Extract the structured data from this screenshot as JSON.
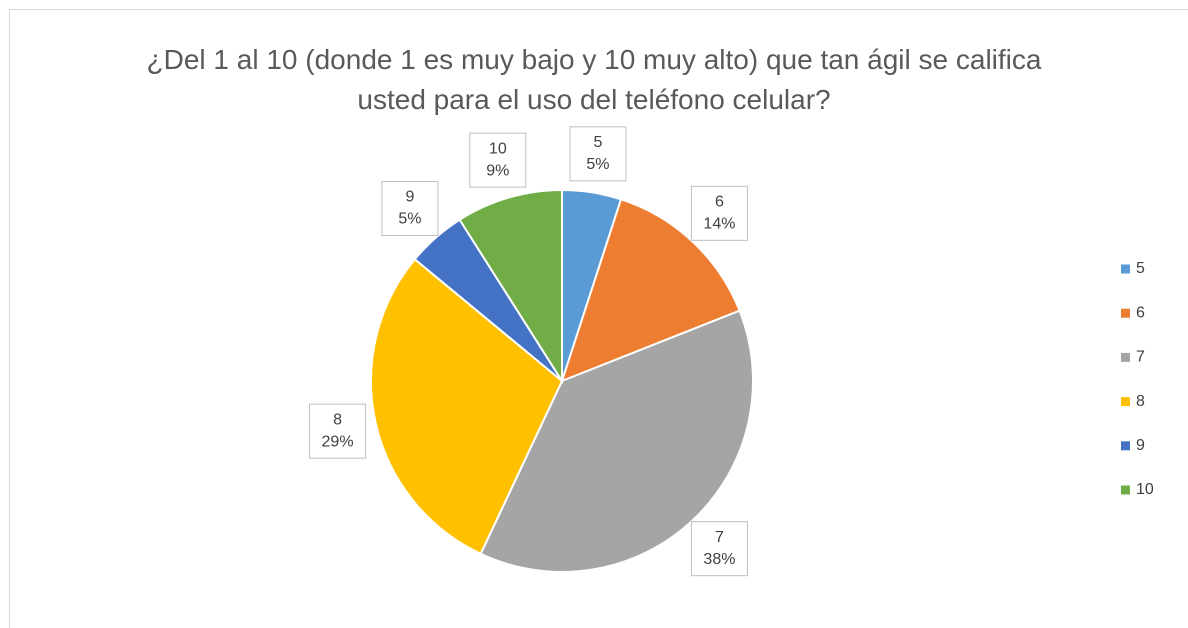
{
  "chart_data": {
    "type": "pie",
    "title": "¿Del 1 al 10 (donde 1 es muy bajo y 10 muy alto) que tan ágil se califica usted para el uso del teléfono celular?",
    "categories": [
      "5",
      "6",
      "7",
      "8",
      "9",
      "10"
    ],
    "values": [
      5,
      14,
      38,
      29,
      5,
      9
    ],
    "value_labels": [
      "5%",
      "14%",
      "38%",
      "29%",
      "5%",
      "9%"
    ],
    "colors": [
      "#5b9bd5",
      "#ed7d31",
      "#a5a5a5",
      "#ffc000",
      "#4472c4",
      "#70ad47"
    ],
    "legend": "right"
  }
}
